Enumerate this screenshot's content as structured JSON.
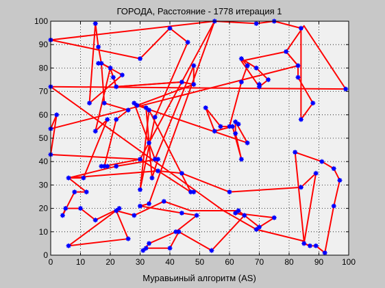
{
  "window": {
    "background": "#c8c8c8"
  },
  "chart_data": {
    "type": "scatter",
    "title": "ГОРОДА, Расстояние - 1778 итерация 1",
    "xlabel": "Муравьиный алгоритм (AS)",
    "ylabel": "",
    "xlim": [
      0,
      100
    ],
    "ylim": [
      0,
      100
    ],
    "xticks": [
      0,
      10,
      20,
      30,
      40,
      50,
      60,
      70,
      80,
      90,
      100
    ],
    "yticks": [
      0,
      10,
      20,
      30,
      40,
      50,
      60,
      70,
      80,
      90,
      100
    ],
    "grid": true,
    "colors": {
      "route": "#ff0000",
      "city": "#0000ff",
      "plot_bg": "#f0f0f0",
      "axes": "#000000"
    },
    "route_closed": true,
    "route": [
      [
        0,
        92
      ],
      [
        30,
        84
      ],
      [
        40,
        97
      ],
      [
        46,
        91
      ],
      [
        35,
        59
      ],
      [
        30,
        28
      ],
      [
        33,
        62
      ],
      [
        47,
        27
      ],
      [
        30,
        41
      ],
      [
        18,
        38
      ],
      [
        22,
        58
      ],
      [
        26,
        62
      ],
      [
        18,
        65
      ],
      [
        17,
        82
      ],
      [
        16,
        89
      ],
      [
        15,
        99
      ],
      [
        13,
        65
      ],
      [
        24,
        77
      ],
      [
        17,
        82
      ],
      [
        20,
        80
      ],
      [
        21,
        76
      ],
      [
        22,
        72
      ],
      [
        44,
        74
      ],
      [
        48,
        73
      ],
      [
        48,
        81
      ],
      [
        35,
        41
      ],
      [
        28,
        65
      ],
      [
        32,
        63
      ],
      [
        33,
        48
      ],
      [
        34,
        33
      ],
      [
        36,
        41
      ],
      [
        22,
        38
      ],
      [
        6,
        33
      ],
      [
        11,
        33
      ],
      [
        19,
        58
      ],
      [
        15,
        53
      ],
      [
        20,
        80
      ],
      [
        22,
        72
      ],
      [
        44,
        74
      ],
      [
        48,
        73
      ],
      [
        29,
        64
      ],
      [
        66,
        48
      ],
      [
        62,
        57
      ],
      [
        62,
        52
      ],
      [
        64,
        41
      ],
      [
        61,
        55
      ],
      [
        55,
        53
      ],
      [
        52,
        63
      ],
      [
        57,
        55
      ],
      [
        60,
        55
      ],
      [
        64,
        74
      ],
      [
        66,
        81
      ],
      [
        64,
        84
      ],
      [
        69,
        80
      ],
      [
        73,
        75
      ],
      [
        70,
        72
      ],
      [
        64,
        83
      ],
      [
        79,
        87
      ],
      [
        83,
        81
      ],
      [
        83,
        76
      ],
      [
        88,
        65
      ],
      [
        84,
        58
      ],
      [
        84,
        97
      ],
      [
        75,
        100
      ],
      [
        69,
        99
      ],
      [
        55,
        100
      ],
      [
        33,
        22
      ],
      [
        30,
        21
      ],
      [
        44,
        18
      ],
      [
        49,
        17
      ],
      [
        42,
        10
      ],
      [
        33,
        5
      ],
      [
        31,
        2
      ],
      [
        32,
        3
      ],
      [
        40,
        3
      ],
      [
        43,
        10
      ],
      [
        54,
        2
      ],
      [
        65,
        17
      ],
      [
        62,
        18
      ],
      [
        75,
        16
      ],
      [
        70,
        12
      ],
      [
        63,
        19
      ],
      [
        47,
        19
      ],
      [
        38,
        23
      ],
      [
        28,
        17
      ],
      [
        22,
        19
      ],
      [
        26,
        7
      ],
      [
        6,
        4
      ],
      [
        23,
        20
      ],
      [
        15,
        15
      ],
      [
        10,
        20
      ],
      [
        5,
        20
      ],
      [
        4,
        17
      ],
      [
        8,
        27
      ],
      [
        12,
        27
      ],
      [
        6,
        33
      ],
      [
        36,
        36
      ],
      [
        44,
        35
      ],
      [
        60,
        27
      ],
      [
        84,
        29
      ],
      [
        89,
        35
      ],
      [
        85,
        5
      ],
      [
        87,
        4
      ],
      [
        89,
        4
      ],
      [
        92,
        1
      ],
      [
        95,
        21
      ],
      [
        97,
        32
      ],
      [
        95,
        37
      ],
      [
        91,
        40
      ],
      [
        82,
        44
      ],
      [
        85,
        6
      ],
      [
        69,
        11
      ],
      [
        58,
        19
      ],
      [
        0,
        72
      ],
      [
        99,
        71
      ],
      [
        85,
        98
      ],
      [
        79,
        87
      ],
      [
        83,
        81
      ],
      [
        0,
        54
      ],
      [
        2,
        60
      ],
      [
        0,
        43
      ],
      [
        30,
        41
      ],
      [
        55,
        100
      ]
    ],
    "cities": [
      [
        0,
        92
      ],
      [
        30,
        84
      ],
      [
        40,
        97
      ],
      [
        46,
        91
      ],
      [
        35,
        59
      ],
      [
        30,
        28
      ],
      [
        33,
        62
      ],
      [
        47,
        27
      ],
      [
        30,
        41
      ],
      [
        18,
        38
      ],
      [
        22,
        58
      ],
      [
        26,
        62
      ],
      [
        18,
        65
      ],
      [
        17,
        82
      ],
      [
        16,
        89
      ],
      [
        15,
        99
      ],
      [
        13,
        65
      ],
      [
        24,
        77
      ],
      [
        20,
        80
      ],
      [
        21,
        76
      ],
      [
        22,
        72
      ],
      [
        44,
        74
      ],
      [
        48,
        73
      ],
      [
        48,
        81
      ],
      [
        35,
        41
      ],
      [
        28,
        65
      ],
      [
        32,
        63
      ],
      [
        33,
        48
      ],
      [
        34,
        33
      ],
      [
        36,
        41
      ],
      [
        22,
        38
      ],
      [
        6,
        33
      ],
      [
        11,
        33
      ],
      [
        19,
        58
      ],
      [
        15,
        53
      ],
      [
        29,
        64
      ],
      [
        66,
        48
      ],
      [
        62,
        57
      ],
      [
        62,
        52
      ],
      [
        64,
        41
      ],
      [
        61,
        55
      ],
      [
        55,
        53
      ],
      [
        52,
        63
      ],
      [
        57,
        55
      ],
      [
        60,
        55
      ],
      [
        64,
        74
      ],
      [
        66,
        81
      ],
      [
        64,
        84
      ],
      [
        69,
        80
      ],
      [
        73,
        75
      ],
      [
        70,
        72
      ],
      [
        79,
        87
      ],
      [
        83,
        81
      ],
      [
        83,
        76
      ],
      [
        88,
        65
      ],
      [
        84,
        58
      ],
      [
        84,
        97
      ],
      [
        75,
        100
      ],
      [
        69,
        99
      ],
      [
        55,
        100
      ],
      [
        33,
        22
      ],
      [
        30,
        21
      ],
      [
        44,
        18
      ],
      [
        49,
        17
      ],
      [
        42,
        10
      ],
      [
        33,
        5
      ],
      [
        31,
        2
      ],
      [
        32,
        3
      ],
      [
        40,
        3
      ],
      [
        43,
        10
      ],
      [
        54,
        2
      ],
      [
        65,
        17
      ],
      [
        62,
        18
      ],
      [
        75,
        16
      ],
      [
        70,
        12
      ],
      [
        63,
        19
      ],
      [
        38,
        23
      ],
      [
        28,
        17
      ],
      [
        22,
        19
      ],
      [
        26,
        7
      ],
      [
        6,
        4
      ],
      [
        23,
        20
      ],
      [
        15,
        15
      ],
      [
        10,
        20
      ],
      [
        5,
        20
      ],
      [
        4,
        17
      ],
      [
        8,
        27
      ],
      [
        12,
        27
      ],
      [
        36,
        36
      ],
      [
        44,
        35
      ],
      [
        60,
        27
      ],
      [
        84,
        29
      ],
      [
        89,
        35
      ],
      [
        85,
        5
      ],
      [
        87,
        4
      ],
      [
        89,
        4
      ],
      [
        92,
        1
      ],
      [
        95,
        21
      ],
      [
        97,
        32
      ],
      [
        95,
        37
      ],
      [
        91,
        40
      ],
      [
        82,
        44
      ],
      [
        69,
        11
      ],
      [
        0,
        72
      ],
      [
        99,
        71
      ],
      [
        0,
        54
      ],
      [
        2,
        60
      ],
      [
        0,
        43
      ],
      [
        16,
        82
      ],
      [
        17,
        38
      ],
      [
        19,
        38
      ],
      [
        66,
        81
      ],
      [
        70,
        73
      ],
      [
        63,
        56
      ],
      [
        48,
        27
      ]
    ]
  }
}
